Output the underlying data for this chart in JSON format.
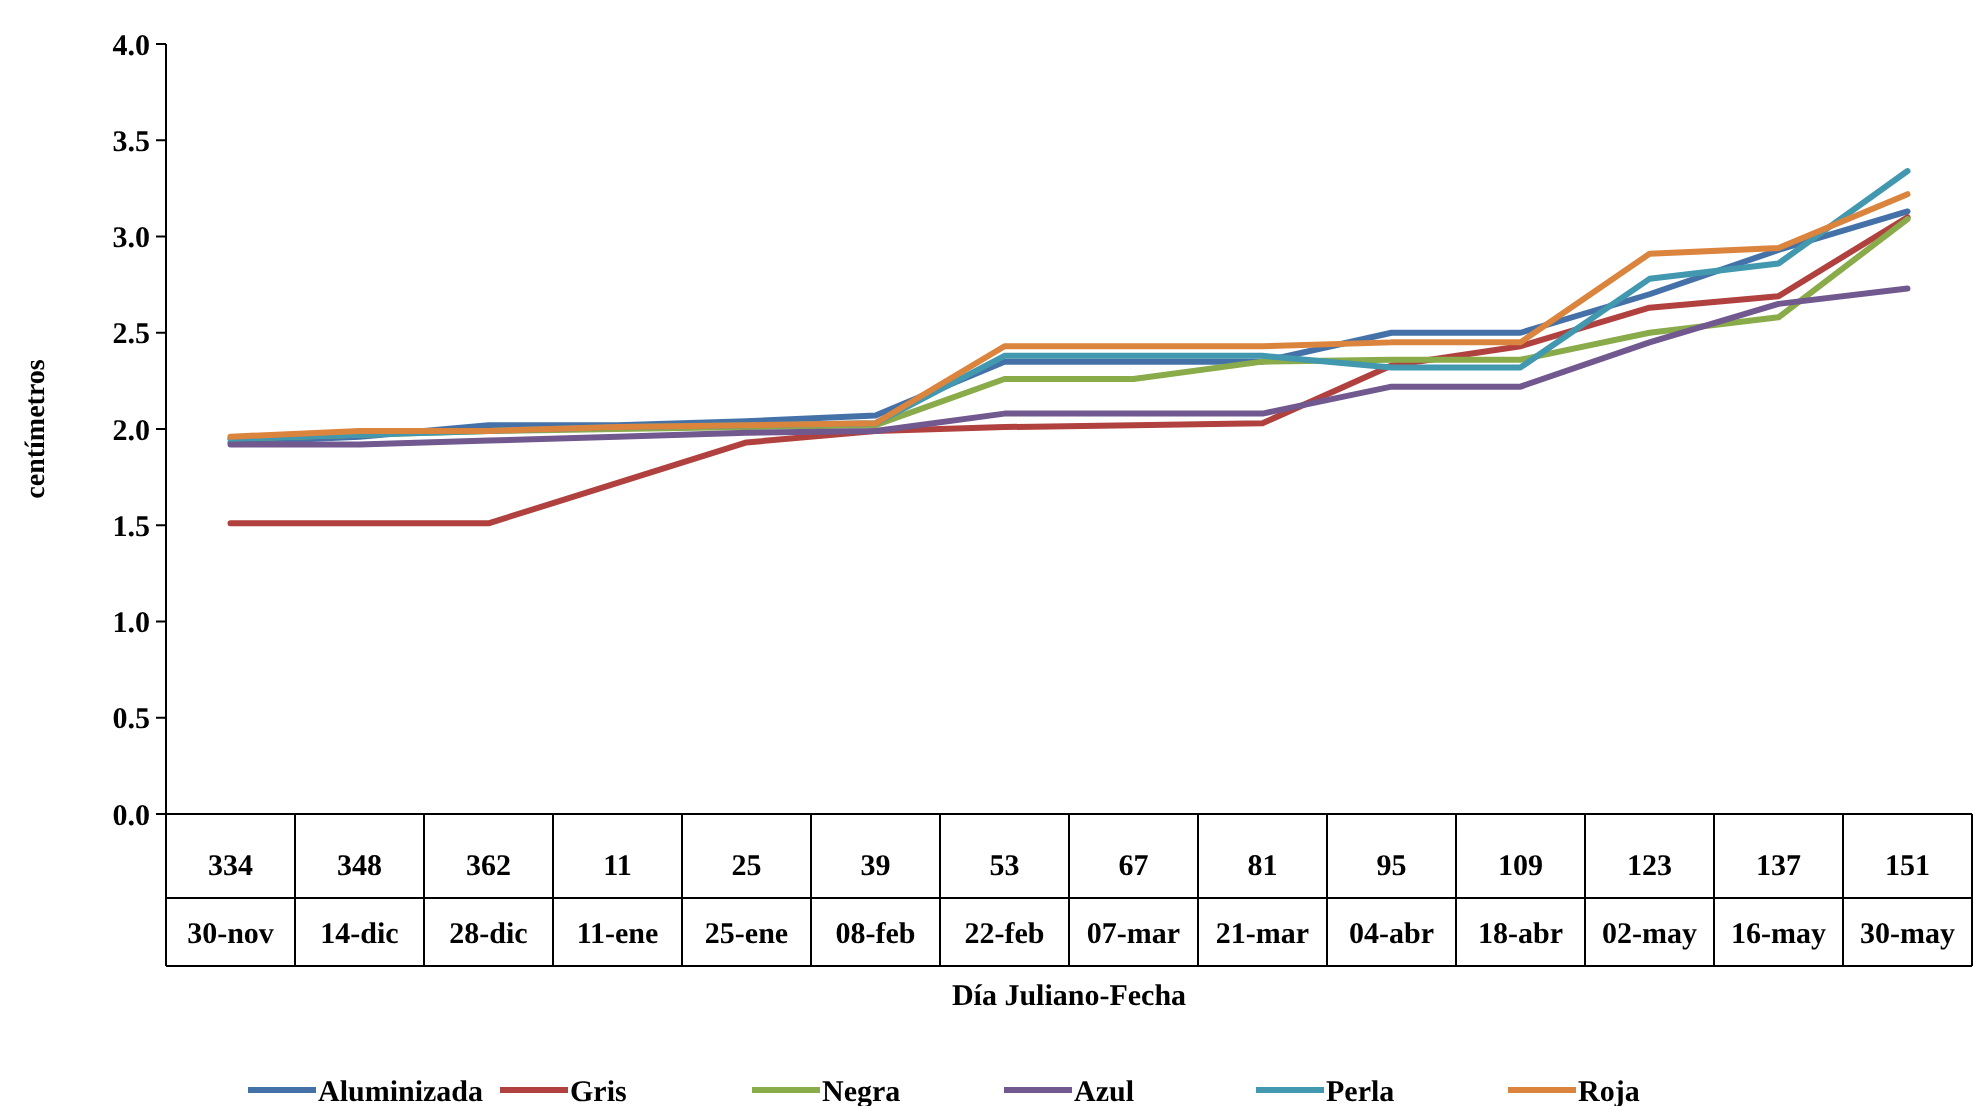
{
  "chart_data": {
    "type": "line",
    "ylabel": "centímetros",
    "xlabel": "Día Juliano-Fecha",
    "categories": [
      "334\n30-nov",
      "348\n14-dic",
      "362\n28-dic",
      "11\n11-ene",
      "25\n25-ene",
      "39\n08-feb",
      "53\n22-feb",
      "67\n07-mar",
      "81\n21-mar",
      "95\n04-abr",
      "109\n18-abr",
      "123\n02-may",
      "137\n16-may",
      "151\n30-may"
    ],
    "series": [
      {
        "name": "Aluminizada",
        "color": "#4472a8",
        "values": [
          1.93,
          1.96,
          2.02,
          2.02,
          2.04,
          2.07,
          2.35,
          2.35,
          2.35,
          2.5,
          2.5,
          2.7,
          2.93,
          3.13
        ]
      },
      {
        "name": "Gris",
        "color": "#b0413e",
        "values": [
          1.51,
          1.51,
          1.51,
          1.72,
          1.93,
          1.99,
          2.01,
          2.02,
          2.03,
          2.33,
          2.43,
          2.63,
          2.69,
          3.1
        ]
      },
      {
        "name": "Negra",
        "color": "#8aab4a",
        "values": [
          1.95,
          1.97,
          1.99,
          2.0,
          2.01,
          2.02,
          2.26,
          2.26,
          2.35,
          2.36,
          2.36,
          2.5,
          2.58,
          3.09
        ]
      },
      {
        "name": "Azul",
        "color": "#71588f",
        "values": [
          1.92,
          1.92,
          1.94,
          1.96,
          1.98,
          1.99,
          2.08,
          2.08,
          2.08,
          2.22,
          2.22,
          2.45,
          2.65,
          2.73
        ]
      },
      {
        "name": "Perla",
        "color": "#4198af",
        "values": [
          1.95,
          1.97,
          1.99,
          2.01,
          2.02,
          2.03,
          2.38,
          2.38,
          2.38,
          2.32,
          2.32,
          2.78,
          2.86,
          3.34
        ]
      },
      {
        "name": "Roja",
        "color": "#db843d",
        "values": [
          1.96,
          1.99,
          1.99,
          2.01,
          2.02,
          2.03,
          2.43,
          2.43,
          2.43,
          2.45,
          2.45,
          2.91,
          2.94,
          3.22
        ]
      }
    ],
    "ylim": [
      0,
      4
    ],
    "yticks": [
      {
        "value": 0,
        "label": "0.0"
      },
      {
        "value": 0.5,
        "label": "0.5"
      },
      {
        "value": 1,
        "label": "1.0"
      },
      {
        "value": 1.5,
        "label": "1.5"
      },
      {
        "value": 2,
        "label": "2.0"
      },
      {
        "value": 2.5,
        "label": "2.5"
      },
      {
        "value": 3,
        "label": "3.0"
      },
      {
        "value": 3.5,
        "label": "3.5"
      },
      {
        "value": 4,
        "label": "4.0"
      }
    ],
    "grid": false,
    "legend": "bottom",
    "marker": "none",
    "line_style": "solid"
  }
}
